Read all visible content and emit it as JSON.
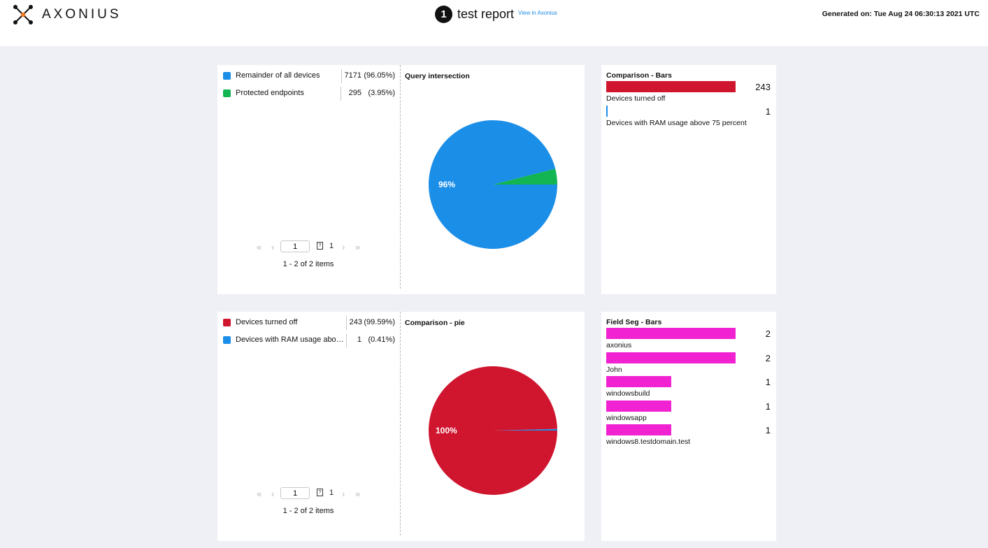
{
  "header": {
    "logo_text": "AXONIUS",
    "report_number": "1",
    "report_title": "test report",
    "view_link": "View in Axonius",
    "generated_on": "Generated on: Tue Aug 24 06:30:13 2021 UTC"
  },
  "colors": {
    "blue": "#1b8ee8",
    "green": "#13b553",
    "red": "#d0152f",
    "magenta": "#f022d2"
  },
  "pie1": {
    "legend": [
      {
        "label": "Remainder of all devices",
        "value": "7171",
        "percent": "(96.05%)"
      },
      {
        "label": "Protected endpoints",
        "value": "295",
        "percent": "(3.95%)"
      }
    ],
    "page_value": "1",
    "total_pages": "1",
    "items_text": "1 - 2 of 2 items"
  },
  "pie2": {
    "legend": [
      {
        "label": "Devices turned off",
        "value": "243",
        "percent": "(99.59%)"
      },
      {
        "label": "Devices with RAM usage abov...",
        "value": "1",
        "percent": "(0.41%)"
      }
    ],
    "page_value": "1",
    "total_pages": "1",
    "items_text": "1 - 2 of 2 items"
  },
  "pagination_icons": {
    "first": "«",
    "prev": "‹",
    "next": "›",
    "last": "»"
  },
  "chart_data": [
    {
      "type": "pie",
      "title": "Query intersection",
      "categories": [
        "Remainder of all devices",
        "Protected endpoints"
      ],
      "values": [
        7171,
        295
      ],
      "percents": [
        96.05,
        3.95
      ],
      "slice_label": "96%",
      "colors": [
        "#1b8ee8",
        "#13b553"
      ]
    },
    {
      "type": "bar",
      "title": "Comparison - Bars",
      "categories": [
        "Devices turned off",
        "Devices with RAM usage above 75 percent"
      ],
      "values": [
        243,
        1
      ],
      "colors": [
        "#d0152f",
        "#1b8ee8"
      ]
    },
    {
      "type": "pie",
      "title": "Comparison - pie",
      "categories": [
        "Devices turned off",
        "Devices with RAM usage above 75 percent"
      ],
      "values": [
        243,
        1
      ],
      "percents": [
        99.59,
        0.41
      ],
      "slice_label": "100%",
      "colors": [
        "#d0152f",
        "#1b8ee8"
      ]
    },
    {
      "type": "bar",
      "title": "Field Seg - Bars",
      "categories": [
        "axonius",
        "John",
        "windowsbuild",
        "windowsapp",
        "windows8.testdomain.test"
      ],
      "values": [
        2,
        2,
        1,
        1,
        1
      ],
      "colors": [
        "#f022d2"
      ]
    }
  ]
}
